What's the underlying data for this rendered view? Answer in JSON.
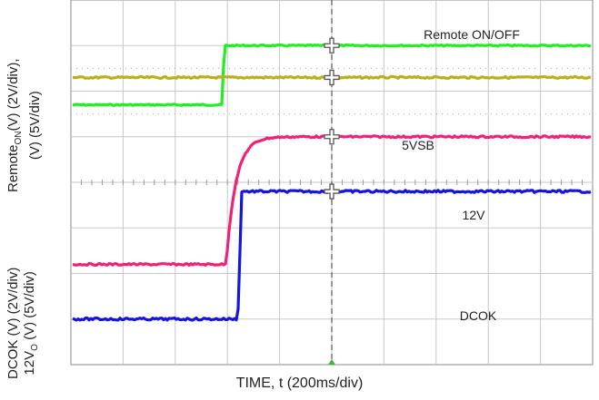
{
  "chart_data": {
    "type": "line",
    "xlabel": "TIME, t (200ms/div)",
    "ylabels": {
      "top": {
        "line1_pre": "Remote",
        "line1_sub": "ON",
        "line1_post": "(V) (2V/div),",
        "line2": "(V) (5V/div)"
      },
      "bottom": {
        "line1": "DCOK (V) (2V/div)",
        "line2_pre": "12V",
        "line2_sub": "O",
        "line2_post": " (V) (5V/div)"
      }
    },
    "divisions": {
      "x": 10,
      "y": 8
    },
    "xlim": [
      0,
      2000
    ],
    "x_units": "ms",
    "cursor_time": 1000,
    "series": [
      {
        "name": "Remote ON/OFF",
        "color": "#22ee22",
        "low_div": 2.3,
        "high_div": 1.0,
        "edge_time": 580,
        "rise_time": 8,
        "noise_div": 0.015
      },
      {
        "name": "5VSB",
        "color": "#b9b020",
        "low_div": 1.7,
        "high_div": 1.7,
        "edge_time": 0,
        "rise_time": 0,
        "noise_div": 0.02
      },
      {
        "name": "12V",
        "color": "#ee2277",
        "low_div": 5.8,
        "high_div": 3.0,
        "edge_time": 595,
        "rise_time": 110,
        "noise_div": 0.02
      },
      {
        "name": "DCOK",
        "color": "#1515dd",
        "low_div": 7.0,
        "high_div": 4.2,
        "edge_time": 640,
        "rise_time": 15,
        "noise_div": 0.025
      }
    ]
  }
}
